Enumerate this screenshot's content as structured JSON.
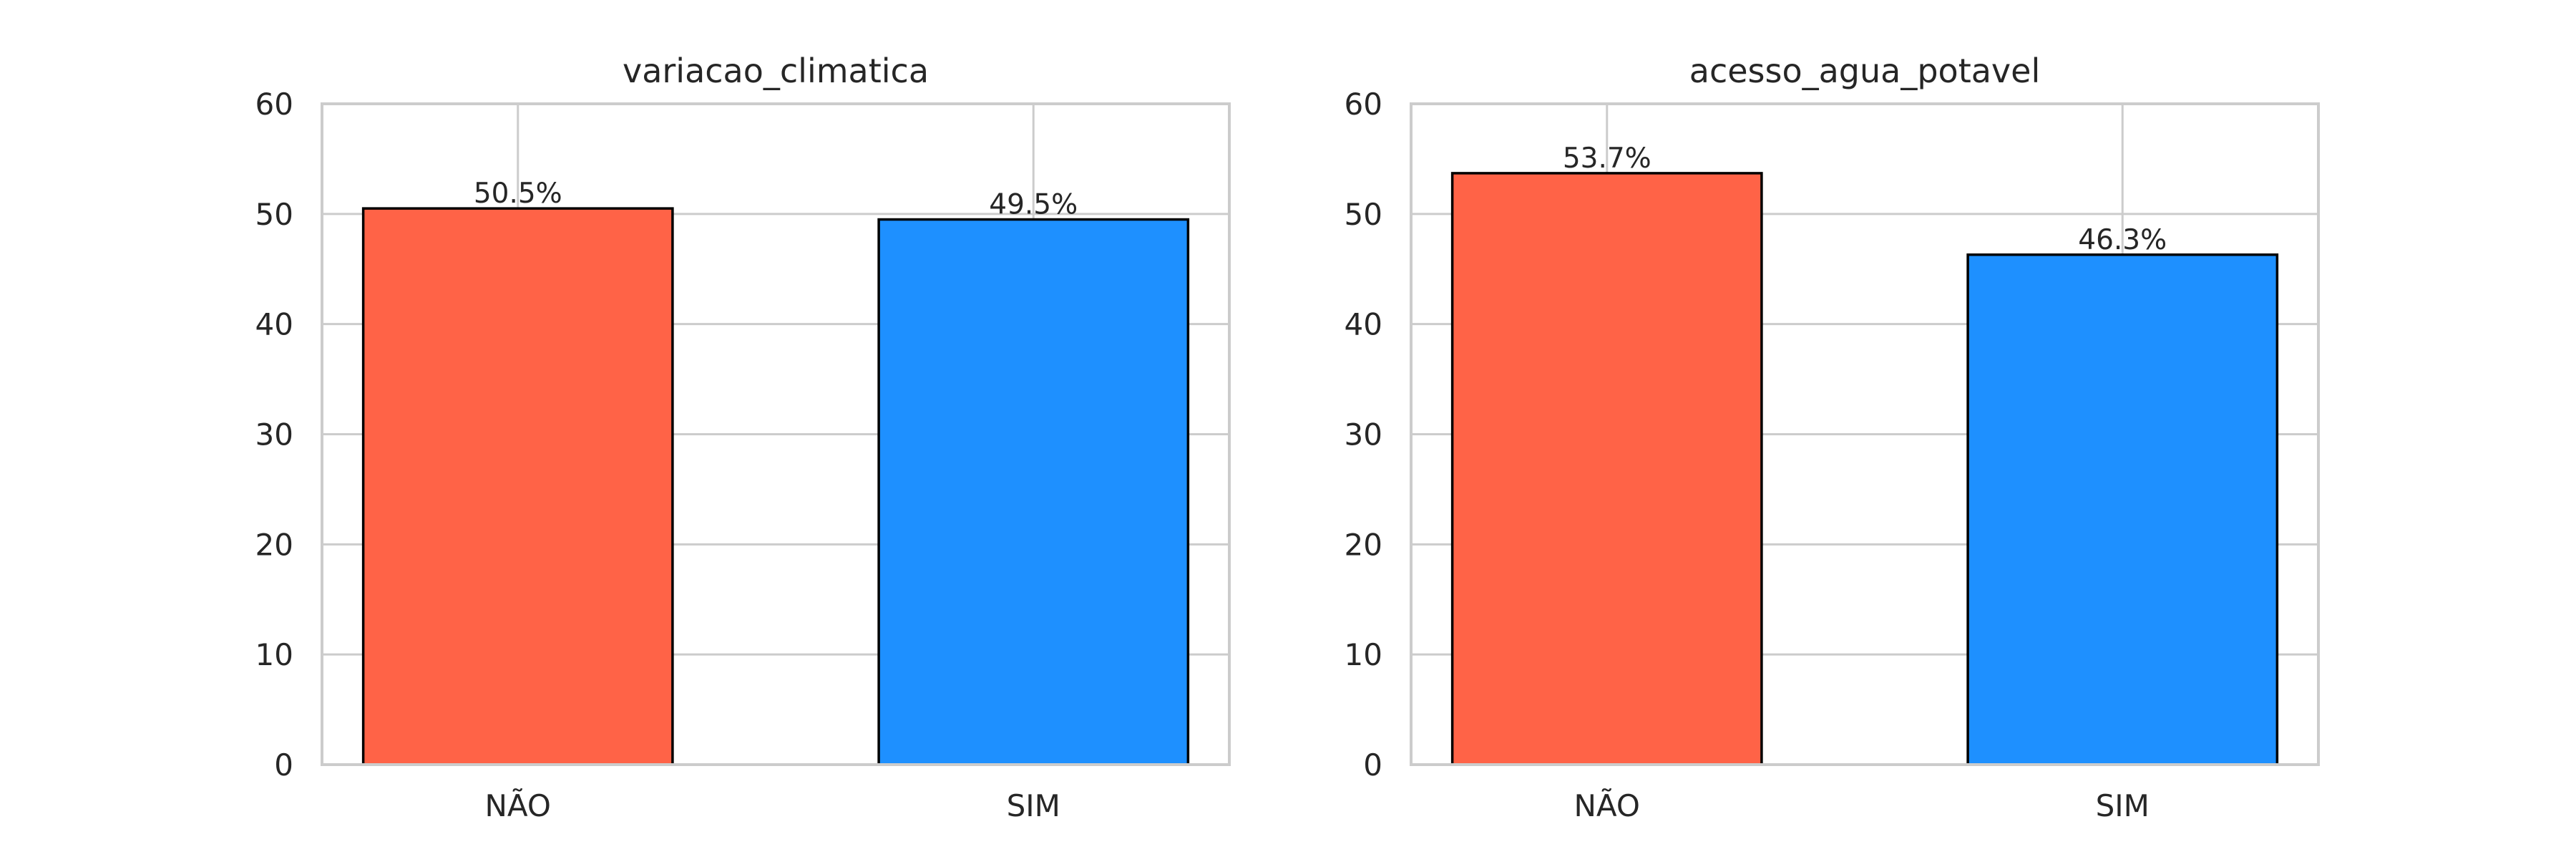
{
  "chart_data": [
    {
      "type": "bar",
      "title": "variacao_climatica",
      "categories": [
        "NÃO",
        "SIM"
      ],
      "values": [
        50.5,
        49.5
      ],
      "value_labels": [
        "50.5%",
        "49.5%"
      ],
      "colors": [
        "#FF6347",
        "#1E90FF"
      ],
      "ylim": [
        0,
        60
      ],
      "yticks": [
        "0",
        "10",
        "20",
        "30",
        "40",
        "50",
        "60"
      ],
      "xlabel": "",
      "ylabel": "",
      "grid": true
    },
    {
      "type": "bar",
      "title": "acesso_agua_potavel",
      "categories": [
        "NÃO",
        "SIM"
      ],
      "values": [
        53.7,
        46.3
      ],
      "value_labels": [
        "53.7%",
        "46.3%"
      ],
      "colors": [
        "#FF6347",
        "#1E90FF"
      ],
      "ylim": [
        0,
        60
      ],
      "yticks": [
        "0",
        "10",
        "20",
        "30",
        "40",
        "50",
        "60"
      ],
      "xlabel": "",
      "ylabel": "",
      "grid": true
    }
  ]
}
